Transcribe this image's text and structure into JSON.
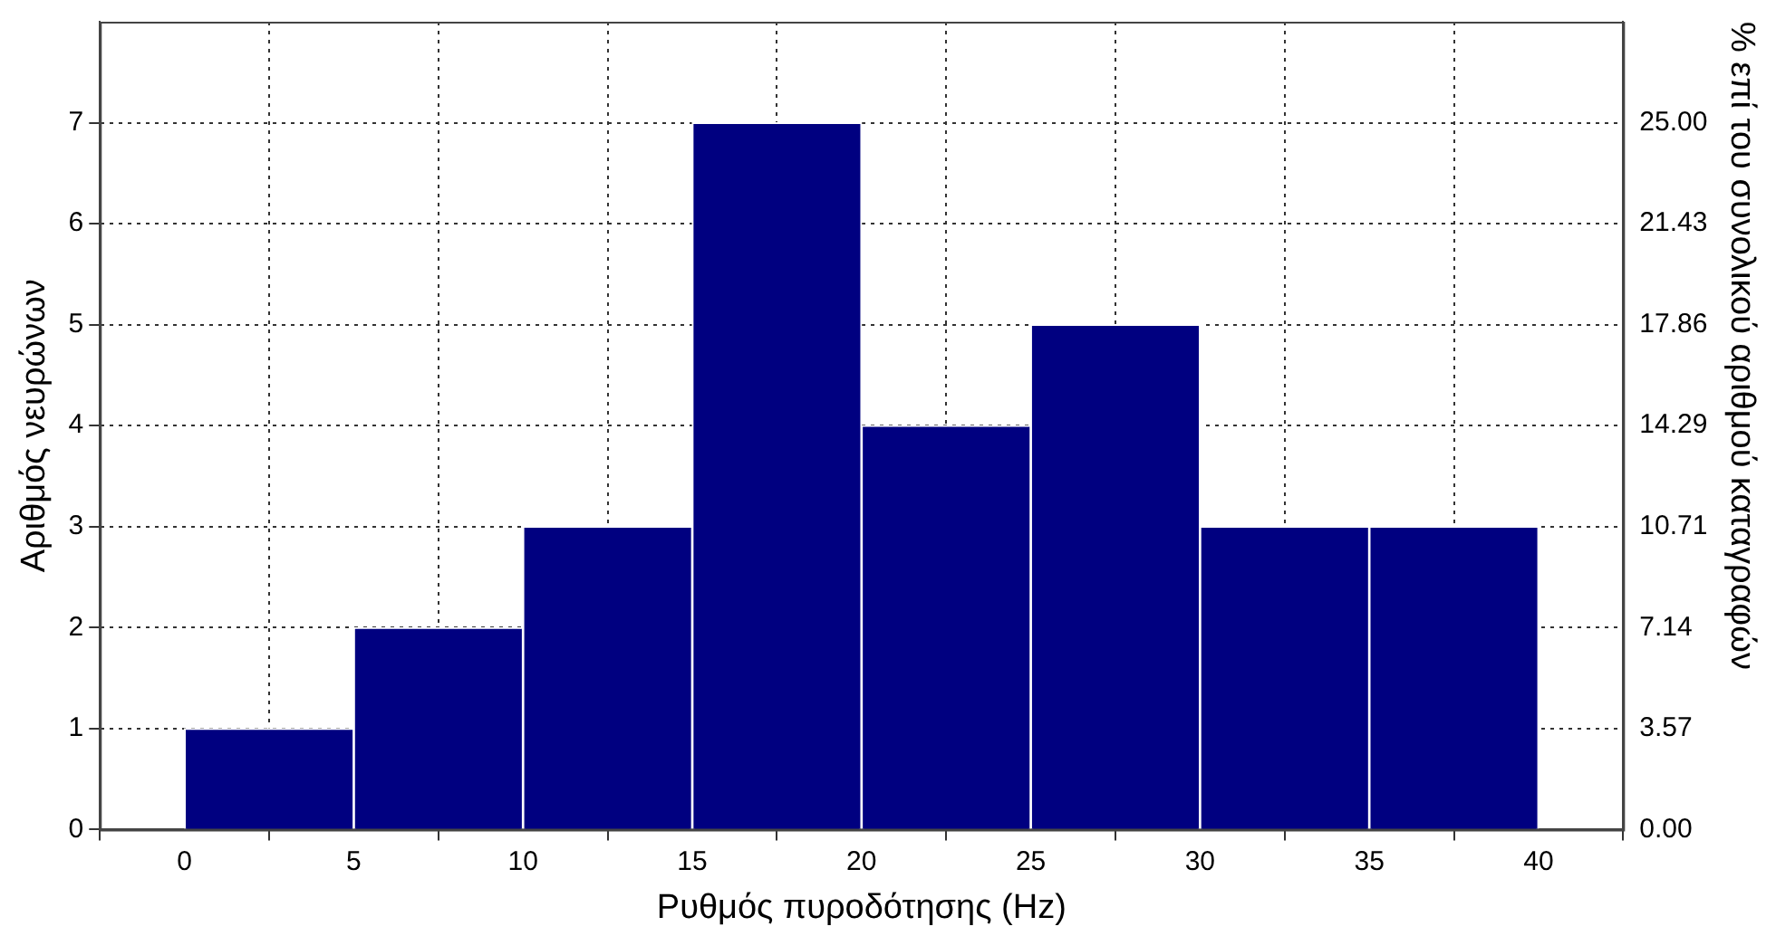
{
  "chart_data": {
    "type": "histogram",
    "xlabel": "Ρυθμός πυροδότησης (Hz)",
    "ylabel": "Αριθμός νευρώνων",
    "y2label": "% επί του συνολικού αριθμού καταγραφών",
    "bins": [
      0,
      5,
      10,
      15,
      20,
      25,
      30,
      35,
      40
    ],
    "values": [
      1,
      2,
      3,
      7,
      4,
      5,
      3,
      3
    ],
    "color": "#000080",
    "xlim": [
      -2.5,
      42.5
    ],
    "xticks": [
      0,
      5,
      10,
      15,
      20,
      25,
      30,
      35,
      40
    ],
    "ylim": [
      0,
      8
    ],
    "yticks": [
      0,
      1,
      2,
      3,
      4,
      5,
      6,
      7
    ],
    "y2lim": [
      0,
      28.57
    ],
    "y2ticks": [
      {
        "value": 0,
        "label": "0.00"
      },
      {
        "value": 3.57,
        "label": "3.57"
      },
      {
        "value": 7.14,
        "label": "7.14"
      },
      {
        "value": 10.71,
        "label": "10.71"
      },
      {
        "value": 14.29,
        "label": "14.29"
      },
      {
        "value": 17.86,
        "label": "17.86"
      },
      {
        "value": 21.43,
        "label": "21.43"
      },
      {
        "value": 25,
        "label": "25.00"
      }
    ],
    "grid": true
  }
}
